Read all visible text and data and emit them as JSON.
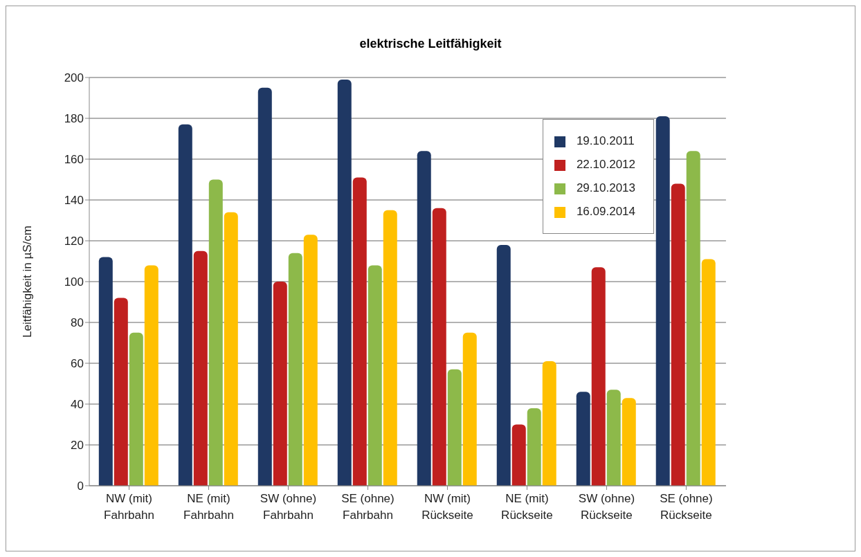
{
  "chart_data": {
    "type": "bar",
    "title": "elektrische Leitfähigkeit",
    "ylabel": "Leitfähigkeit in µS/cm",
    "categories": [
      "NW (mit) Fahrbahn",
      "NE (mit) Fahrbahn",
      "SW (ohne) Fahrbahn",
      "SE (ohne) Fahrbahn",
      "NW (mit) Rückseite",
      "NE (mit) Rückseite",
      "SW (ohne) Rückseite",
      "SE (ohne) Rückseite"
    ],
    "series": [
      {
        "name": "19.10.2011",
        "color": "#1f3864",
        "values": [
          112,
          177,
          195,
          199,
          164,
          118,
          46,
          181
        ]
      },
      {
        "name": "22.10.2012",
        "color": "#c0201f",
        "values": [
          92,
          115,
          100,
          151,
          136,
          30,
          107,
          148
        ]
      },
      {
        "name": "29.10.2013",
        "color": "#8db94a",
        "values": [
          75,
          150,
          114,
          108,
          57,
          38,
          47,
          164
        ]
      },
      {
        "name": "16.09.2014",
        "color": "#ffc000",
        "values": [
          108,
          134,
          123,
          135,
          75,
          61,
          43,
          111
        ]
      }
    ],
    "ylim": [
      0,
      200
    ],
    "yticks": [
      0,
      20,
      40,
      60,
      80,
      100,
      120,
      140,
      160,
      180,
      200
    ],
    "grid": "y",
    "legend": "top right"
  }
}
